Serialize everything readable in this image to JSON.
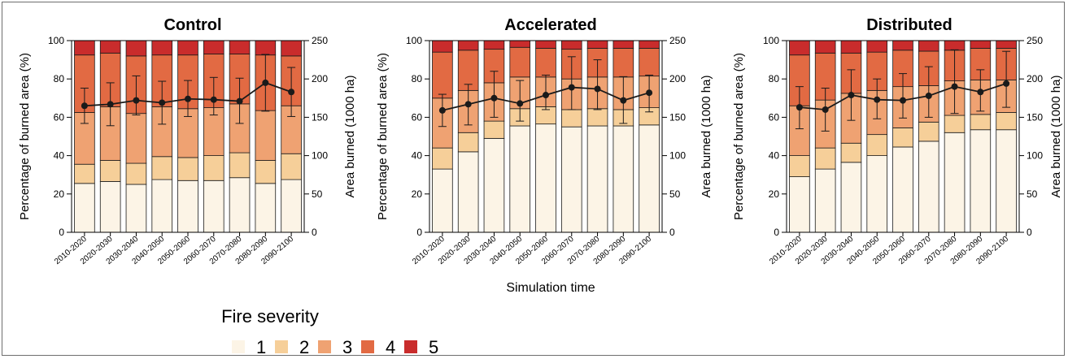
{
  "figure": {
    "x_title": "Simulation time",
    "legend_title": "Fire severity",
    "left_axis_label": "Percentage of burned area (%)",
    "right_axis_label": "Area burned (1000 ha)"
  },
  "colors": {
    "severity": [
      "#fcf4e6",
      "#f6cf99",
      "#efa272",
      "#e26a43",
      "#c92c2c"
    ],
    "line": "#1a1a1a",
    "axis": "#000000"
  },
  "chart_data": [
    {
      "type": "bar",
      "stacked": true,
      "title": "Control",
      "categories": [
        "2010-2020",
        "2020-2030",
        "2030-2040",
        "2040-2050",
        "2050-2060",
        "2060-2070",
        "2070-2080",
        "2080-2090",
        "2090-2100"
      ],
      "ylabel": "Percentage of burned area (%)",
      "ylim": [
        0,
        100
      ],
      "yticks": [
        0,
        20,
        40,
        60,
        80,
        100
      ],
      "y2label": "Area burned (1000 ha)",
      "y2lim": [
        0,
        250
      ],
      "y2ticks": [
        0,
        50,
        100,
        150,
        200,
        250
      ],
      "series": [
        {
          "name": "1",
          "values": [
            25.5,
            26.5,
            25,
            27.5,
            27,
            27,
            28.5,
            25.5,
            27.5
          ]
        },
        {
          "name": "2",
          "values": [
            10,
            11,
            11,
            12,
            12,
            13,
            13,
            12,
            13.5
          ]
        },
        {
          "name": "3",
          "values": [
            27,
            28,
            26,
            26,
            25.5,
            25,
            25.5,
            26,
            25
          ]
        },
        {
          "name": "4",
          "values": [
            30,
            28,
            30,
            27,
            28,
            28,
            26,
            29,
            26
          ]
        },
        {
          "name": "5",
          "values": [
            7.5,
            6.5,
            8,
            7.5,
            7.5,
            7,
            7,
            7.5,
            8
          ]
        }
      ],
      "line": {
        "axis": "right",
        "values": [
          165,
          167,
          172,
          169,
          174,
          173,
          171,
          195,
          183
        ],
        "err_low": [
          142,
          139,
          153,
          141,
          151,
          153,
          142,
          158,
          151
        ],
        "err_high": [
          188,
          195,
          204,
          197,
          198,
          202,
          201,
          232,
          215
        ]
      }
    },
    {
      "type": "bar",
      "stacked": true,
      "title": "Accelerated",
      "categories": [
        "2010-2020",
        "2020-2030",
        "2030-2040",
        "2040-2050",
        "2050-2060",
        "2060-2070",
        "2070-2080",
        "2080-2090",
        "2090-2100"
      ],
      "ylabel": "Percentage of burned area (%)",
      "ylim": [
        0,
        100
      ],
      "yticks": [
        0,
        20,
        40,
        60,
        80,
        100
      ],
      "y2label": "Area burned (1000 ha)",
      "y2lim": [
        0,
        250
      ],
      "y2ticks": [
        0,
        50,
        100,
        150,
        200,
        250
      ],
      "series": [
        {
          "name": "1",
          "values": [
            33,
            42,
            49,
            55.5,
            56.5,
            55,
            55.5,
            55.5,
            56
          ]
        },
        {
          "name": "2",
          "values": [
            11,
            10,
            9,
            9,
            9,
            9,
            9,
            8.5,
            9
          ]
        },
        {
          "name": "3",
          "values": [
            26,
            22,
            20,
            16.5,
            15.5,
            16,
            16.5,
            17,
            16.5
          ]
        },
        {
          "name": "4",
          "values": [
            24,
            21,
            17.5,
            15.5,
            15,
            15.5,
            15,
            15,
            14.5
          ]
        },
        {
          "name": "5",
          "values": [
            6,
            5,
            4.5,
            3.5,
            4,
            4.5,
            4,
            4,
            4
          ]
        }
      ],
      "line": {
        "axis": "right",
        "values": [
          159,
          167,
          175,
          168,
          179,
          189,
          187,
          172,
          182
        ],
        "err_low": [
          138,
          140,
          150,
          145,
          160,
          160,
          160,
          142,
          157
        ],
        "err_high": [
          180,
          193,
          210,
          198,
          205,
          229,
          225,
          203,
          205
        ]
      }
    },
    {
      "type": "bar",
      "stacked": true,
      "title": "Distributed",
      "categories": [
        "2010-2020",
        "2020-2030",
        "2030-2040",
        "2040-2050",
        "2050-2060",
        "2060-2070",
        "2070-2080",
        "2080-2090",
        "2090-2100"
      ],
      "ylabel": "Percentage of burned area (%)",
      "ylim": [
        0,
        100
      ],
      "yticks": [
        0,
        20,
        40,
        60,
        80,
        100
      ],
      "y2label": "Area burned (1000 ha)",
      "y2lim": [
        0,
        250
      ],
      "y2ticks": [
        0,
        50,
        100,
        150,
        200,
        250
      ],
      "series": [
        {
          "name": "1",
          "values": [
            29,
            33,
            36.5,
            40,
            44.5,
            47.5,
            52,
            53.5,
            53.5
          ]
        },
        {
          "name": "2",
          "values": [
            11,
            11,
            10,
            11,
            10,
            10,
            9,
            8,
            9
          ]
        },
        {
          "name": "3",
          "values": [
            26,
            25,
            26,
            23,
            21.5,
            19,
            18,
            18,
            17
          ]
        },
        {
          "name": "4",
          "values": [
            26.5,
            24.5,
            21,
            20,
            19,
            18,
            16,
            16.5,
            16.5
          ]
        },
        {
          "name": "5",
          "values": [
            7.5,
            6.5,
            6.5,
            6,
            5,
            5.5,
            5,
            4,
            4
          ]
        }
      ],
      "line": {
        "axis": "right",
        "values": [
          163,
          160,
          179,
          173,
          172,
          178,
          190,
          183,
          194
        ],
        "err_low": [
          135,
          132,
          146,
          148,
          149,
          150,
          155,
          158,
          163
        ],
        "err_high": [
          190,
          188,
          212,
          200,
          207,
          216,
          238,
          212,
          236
        ]
      }
    }
  ]
}
